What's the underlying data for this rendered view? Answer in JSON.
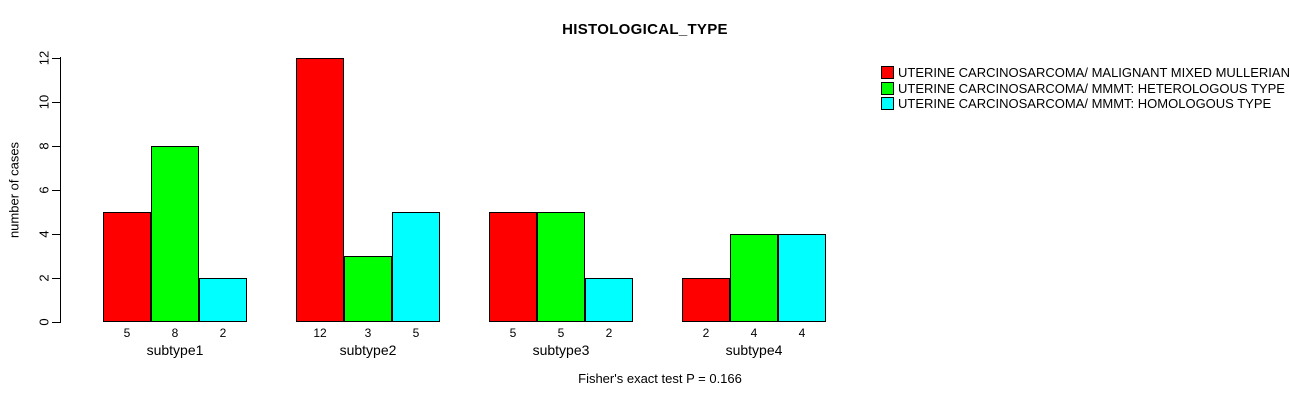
{
  "figure": {
    "background": "#ffffff",
    "text_color": "#000000",
    "axis_color": "#000000"
  },
  "chart_data": {
    "type": "bar",
    "title": "HISTOLOGICAL_TYPE",
    "ylabel": "number of cases",
    "xlabel": "",
    "footnote": "Fisher's exact test P = 0.166",
    "ylim": [
      0,
      12
    ],
    "yticks": [
      0,
      2,
      4,
      6,
      8,
      10,
      12
    ],
    "grid": false,
    "legend_position": "top-right",
    "bar_value_labels": true,
    "categories": [
      "subtype1",
      "subtype2",
      "subtype3",
      "subtype4"
    ],
    "series": [
      {
        "name": "UTERINE CARCINOSARCOMA/ MALIGNANT MIXED MULLERIAN TUMOR",
        "color": "#ff0000",
        "values": [
          5,
          12,
          5,
          2
        ]
      },
      {
        "name": "UTERINE CARCINOSARCOMA/ MMMT: HETEROLOGOUS TYPE",
        "color": "#00ff00",
        "values": [
          8,
          3,
          5,
          4
        ]
      },
      {
        "name": "UTERINE CARCINOSARCOMA/ MMMT: HOMOLOGOUS TYPE",
        "color": "#00ffff",
        "values": [
          2,
          5,
          2,
          4
        ]
      }
    ]
  }
}
